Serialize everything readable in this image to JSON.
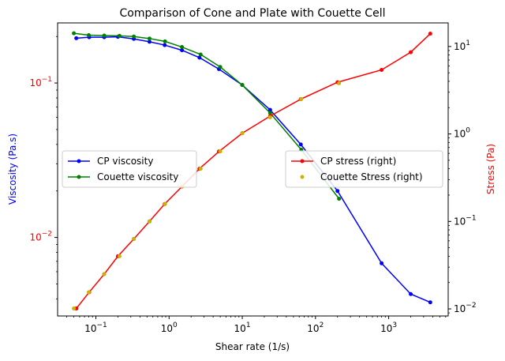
{
  "chart_data": {
    "type": "line",
    "title": "Comparison of Cone and Plate with Couette Cell",
    "xlabel": "Shear rate (1/s)",
    "ylabel_left": "Viscosity (Pa.s)",
    "ylabel_right": "Stress (Pa)",
    "x_scale": "log",
    "y_left_scale": "log",
    "y_right_scale": "log",
    "xlim": [
      0.03,
      6500
    ],
    "ylim_left": [
      0.0031,
      0.245
    ],
    "ylim_right": [
      0.0083,
      18.6
    ],
    "x_ticks": [
      {
        "value": 0.1,
        "base": "10",
        "exp": "−1"
      },
      {
        "value": 1,
        "base": "10",
        "exp": "0"
      },
      {
        "value": 10,
        "base": "10",
        "exp": "1"
      },
      {
        "value": 100,
        "base": "10",
        "exp": "2"
      },
      {
        "value": 1000,
        "base": "10",
        "exp": "3"
      }
    ],
    "y_left_ticks": [
      {
        "value": 0.01,
        "base": "10",
        "exp": "−2"
      },
      {
        "value": 0.1,
        "base": "10",
        "exp": "−1"
      }
    ],
    "y_right_ticks": [
      {
        "value": 0.01,
        "base": "10",
        "exp": "−2"
      },
      {
        "value": 0.1,
        "base": "10",
        "exp": "−1"
      },
      {
        "value": 1,
        "base": "10",
        "exp": "0"
      },
      {
        "value": 10,
        "base": "10",
        "exp": "1"
      }
    ],
    "colors": {
      "left_axis_labels": "#ff0000",
      "left_axis_title": "#0000ff",
      "right_axis_title": "#ff0000",
      "right_axis_labels": "#000000"
    },
    "legends": [
      {
        "placement": "center-left",
        "entries": [
          "CP viscosity",
          "Couette viscosity"
        ]
      },
      {
        "placement": "center-right",
        "entries": [
          "CP stress (right)",
          "Couette Stress (right)"
        ]
      }
    ],
    "series": [
      {
        "name": "CP viscosity",
        "axis": "left",
        "color": "#0000ff",
        "style": "line-marker",
        "x": [
          0.054,
          0.081,
          0.13,
          0.2,
          0.33,
          0.54,
          0.87,
          1.5,
          2.6,
          4.8,
          10,
          24,
          63,
          200,
          800,
          2000,
          3700
        ],
        "y": [
          0.195,
          0.198,
          0.198,
          0.199,
          0.193,
          0.185,
          0.176,
          0.163,
          0.146,
          0.123,
          0.097,
          0.067,
          0.04,
          0.02,
          0.0068,
          0.0043,
          0.0038
        ]
      },
      {
        "name": "Couette viscosity",
        "axis": "left",
        "color": "#008000",
        "style": "line-marker",
        "x": [
          0.05,
          0.08,
          0.13,
          0.21,
          0.33,
          0.54,
          0.88,
          1.5,
          2.7,
          5,
          10,
          24,
          64,
          210
        ],
        "y": [
          0.21,
          0.204,
          0.203,
          0.202,
          0.2,
          0.194,
          0.186,
          0.171,
          0.153,
          0.127,
          0.097,
          0.064,
          0.037,
          0.0178
        ]
      },
      {
        "name": "CP stress (right)",
        "axis": "right",
        "color": "#ff0000",
        "style": "line-marker",
        "x": [
          0.054,
          0.081,
          0.13,
          0.2,
          0.33,
          0.54,
          0.87,
          1.5,
          2.6,
          4.8,
          10,
          24,
          63,
          200,
          800,
          2000,
          3700
        ],
        "y": [
          0.0101,
          0.0155,
          0.025,
          0.04,
          0.063,
          0.1,
          0.158,
          0.25,
          0.4,
          0.63,
          1.02,
          1.6,
          2.5,
          3.9,
          5.4,
          8.6,
          14
        ]
      },
      {
        "name": "Couette Stress (right)",
        "axis": "right",
        "color": "#c8b400",
        "style": "marker",
        "x": [
          0.05,
          0.08,
          0.13,
          0.21,
          0.33,
          0.54,
          0.88,
          1.5,
          2.7,
          5,
          10,
          24,
          64,
          210
        ],
        "y": [
          0.0101,
          0.0155,
          0.025,
          0.04,
          0.063,
          0.1,
          0.158,
          0.25,
          0.4,
          0.63,
          1.02,
          1.55,
          2.5,
          3.8
        ]
      }
    ]
  }
}
